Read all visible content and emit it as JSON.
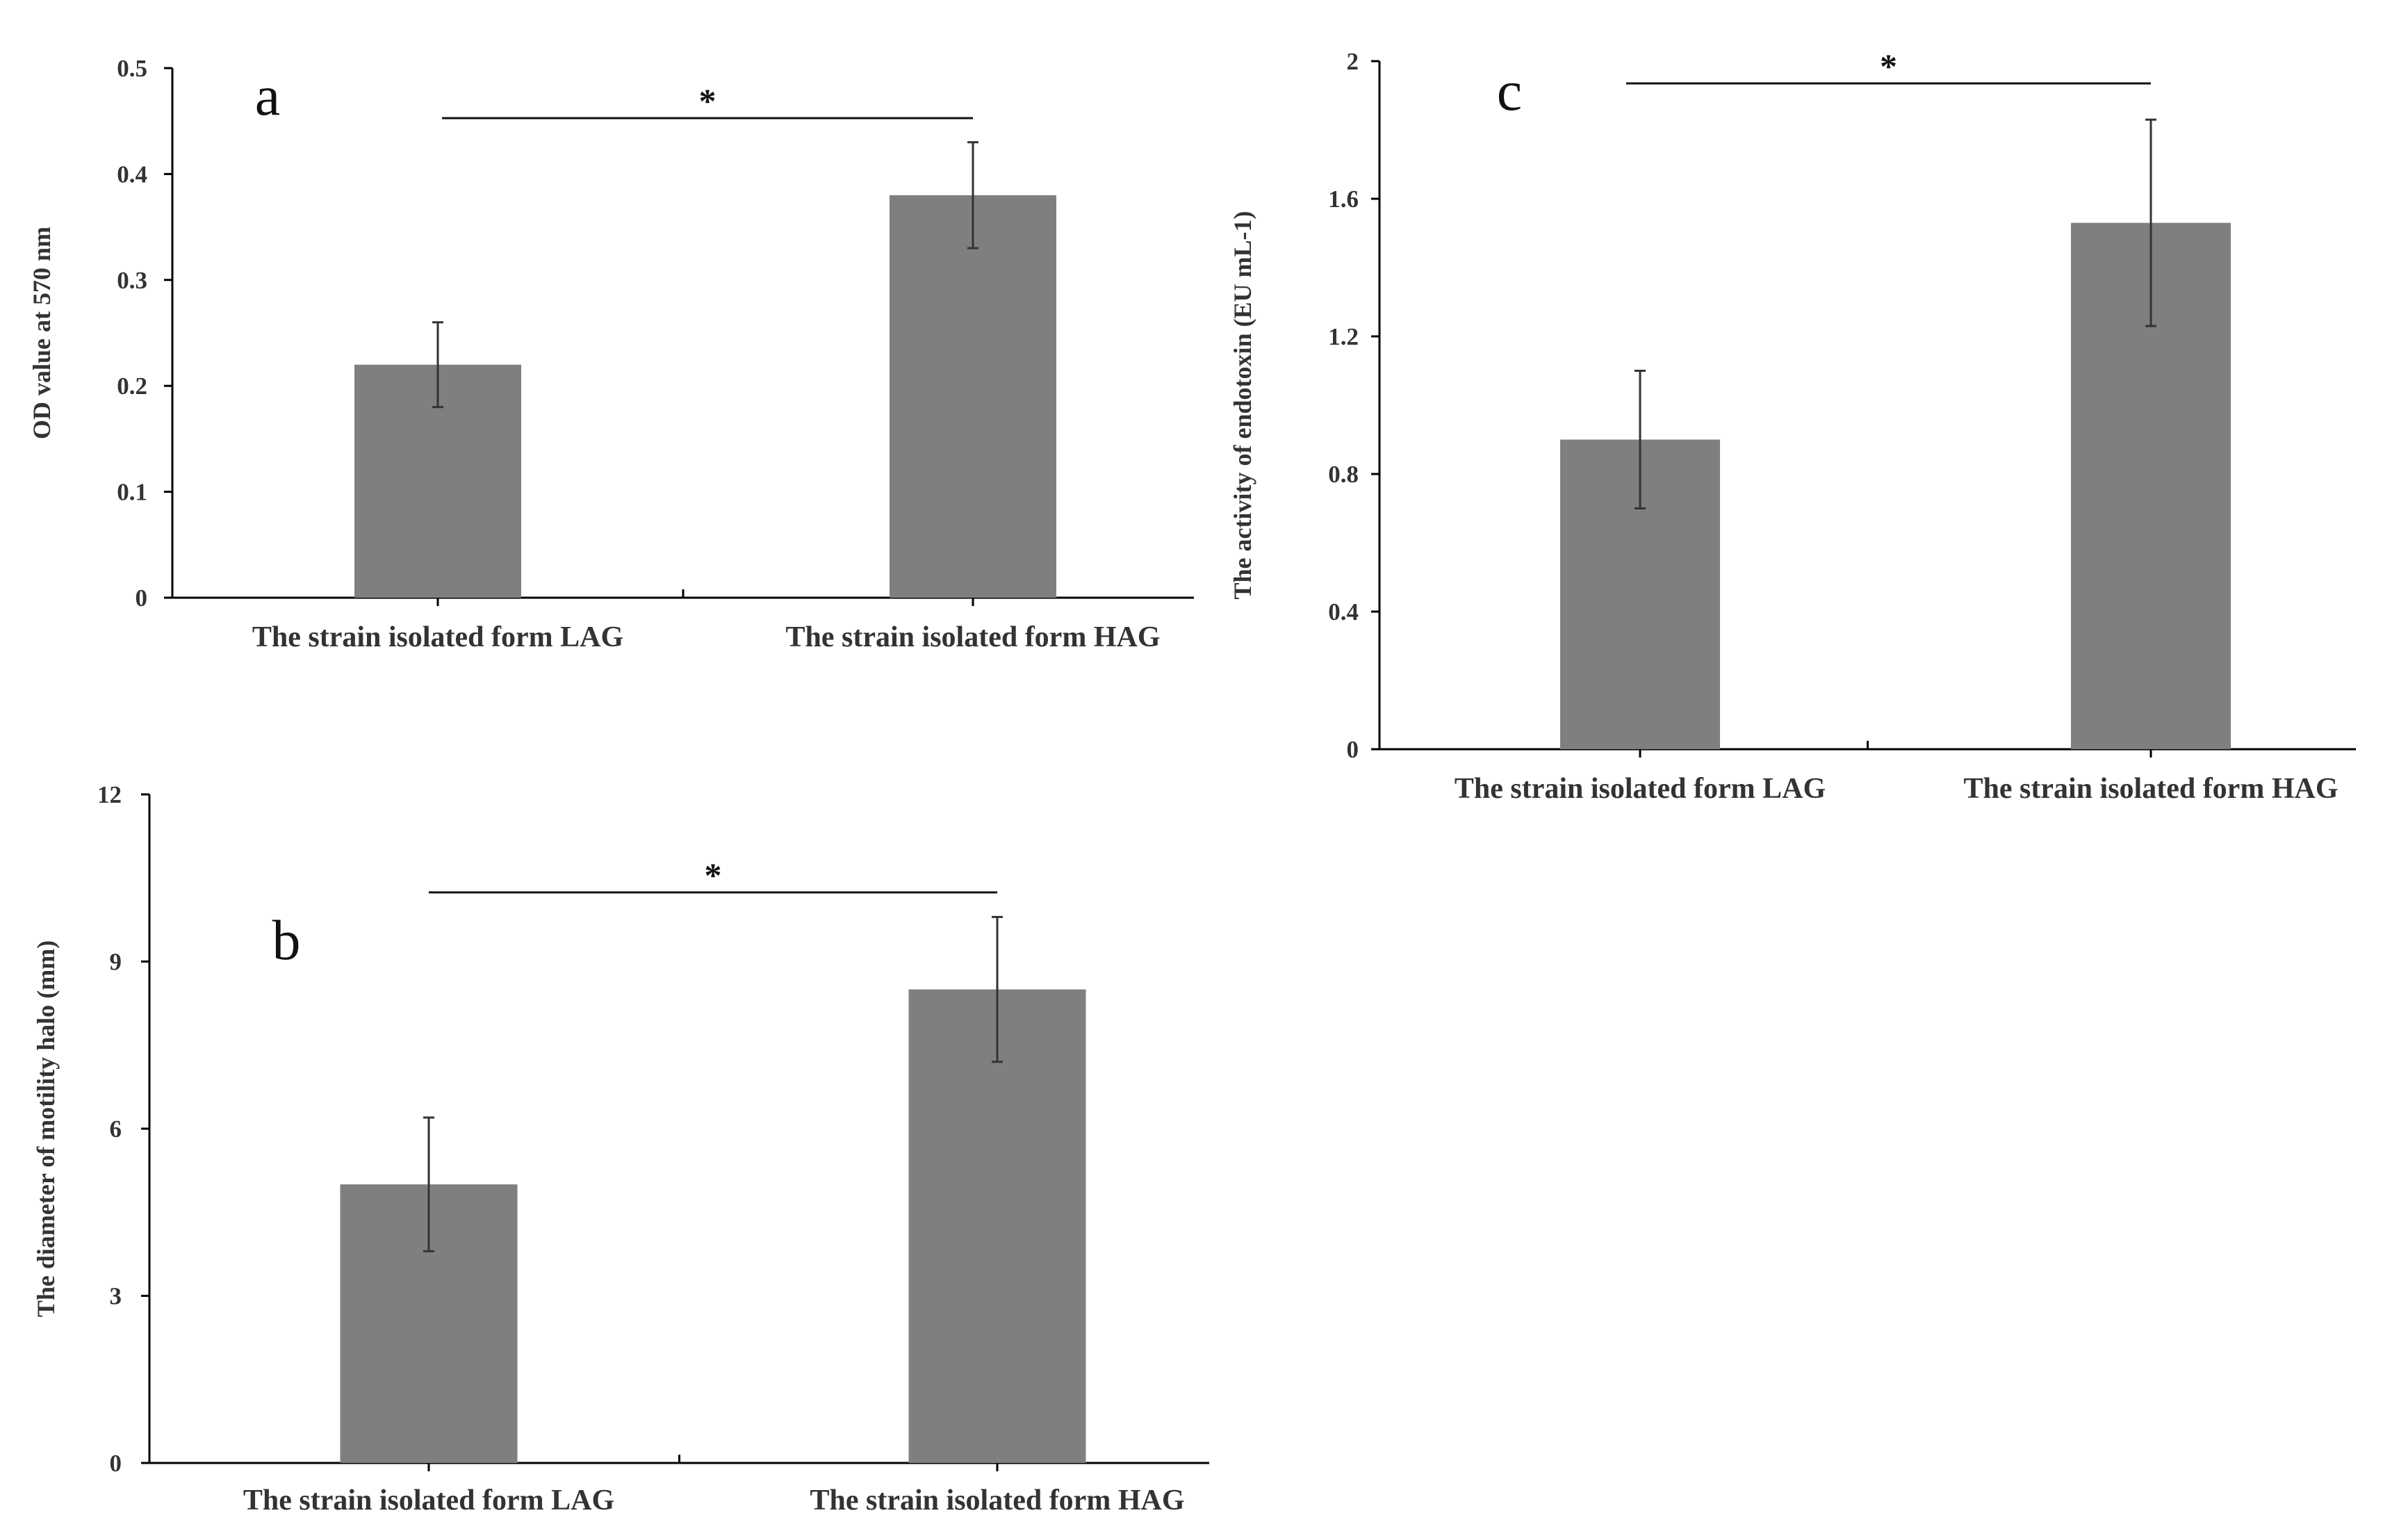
{
  "bar_color": "#7f7f7f",
  "axis_color": "#000000",
  "chart_data": [
    {
      "panel": "a",
      "type": "bar",
      "categories": [
        "The strain isolated form LAG",
        "The strain isolated form HAG"
      ],
      "values": [
        0.22,
        0.38
      ],
      "errors": [
        0.04,
        0.05
      ],
      "ylabel": "OD value at 570 nm",
      "ylim": [
        0,
        0.5
      ],
      "yticks": [
        "0",
        "0.1",
        "0.2",
        "0.3",
        "0.4",
        "0.5"
      ],
      "significance": "*"
    },
    {
      "panel": "b",
      "type": "bar",
      "categories": [
        "The strain isolated form LAG",
        "The strain isolated form HAG"
      ],
      "values": [
        5.0,
        8.5
      ],
      "errors": [
        1.2,
        1.3
      ],
      "ylabel": "The diameter of motility halo (mm)",
      "ylim": [
        0,
        12
      ],
      "yticks": [
        "0",
        "3",
        "6",
        "9",
        "12"
      ],
      "significance": "*"
    },
    {
      "panel": "c",
      "type": "bar",
      "categories": [
        "The strain isolated form LAG",
        "The strain isolated form HAG"
      ],
      "values": [
        0.9,
        1.53
      ],
      "errors": [
        0.2,
        0.3
      ],
      "ylabel": "The activity of endotoxin (EU mL-1)",
      "ylim": [
        0,
        2
      ],
      "yticks": [
        "0",
        "0.4",
        "0.8",
        "1.2",
        "1.6",
        "2"
      ],
      "significance": "*"
    }
  ]
}
